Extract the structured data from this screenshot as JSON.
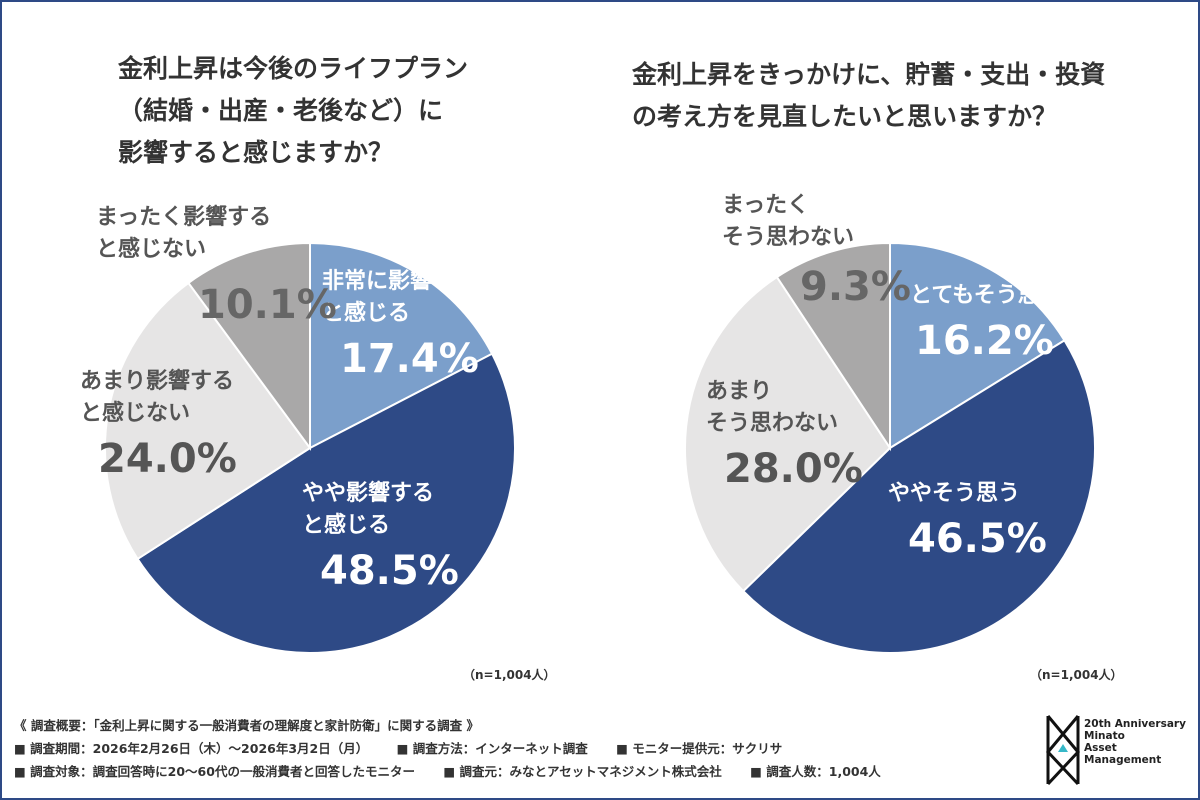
{
  "chart_data": [
    {
      "type": "pie",
      "title": "金利上昇は今後のライフプラン\n（結婚・出産・老後など）に\n影響すると感じますか？",
      "categories": [
        "非常に影響すると感じる",
        "やや影響すると感じる",
        "あまり影響すると感じない",
        "まったく影響すると感じない"
      ],
      "values": [
        17.4,
        48.5,
        24.0,
        10.1
      ],
      "labels": [
        {
          "lines": [
            "非常に影響する",
            "と感じる"
          ],
          "pct": "17.4%"
        },
        {
          "lines": [
            "やや影響する",
            "と感じる"
          ],
          "pct": "48.5%"
        },
        {
          "lines": [
            "あまり影響する",
            "と感じない"
          ],
          "pct": "24.0%"
        },
        {
          "lines": [
            "まったく影響する",
            "と感じない"
          ],
          "pct": "10.1%"
        }
      ],
      "colors": [
        "#7b9fcb",
        "#2e4a86",
        "#e6e5e5",
        "#a9a8a8"
      ],
      "note": "（n=1,004人）"
    },
    {
      "type": "pie",
      "title": "金利上昇をきっかけに、貯蓄・支出・投資\nの考え方を見直したいと思いますか？",
      "categories": [
        "とてもそう思う",
        "ややそう思う",
        "あまりそう思わない",
        "まったくそう思わない"
      ],
      "values": [
        16.2,
        46.5,
        28.0,
        9.3
      ],
      "labels": [
        {
          "lines": [
            "とてもそう思う"
          ],
          "pct": "16.2%"
        },
        {
          "lines": [
            "ややそう思う"
          ],
          "pct": "46.5%"
        },
        {
          "lines": [
            "あまり",
            "そう思わない"
          ],
          "pct": "28.0%"
        },
        {
          "lines": [
            "まったく",
            "そう思わない"
          ],
          "pct": "9.3%"
        }
      ],
      "colors": [
        "#7b9fcb",
        "#2e4a86",
        "#e6e5e5",
        "#a9a8a8"
      ],
      "note": "（n=1,004人）"
    }
  ],
  "footer": {
    "summary": "《 調査概要：「金利上昇に関する一般消費者の理解度と家計防衛」に関する調査 》",
    "period": "■ 調査期間：2026年2月26日（木）～2026年3月2日（月）",
    "method": "■ 調査方法：インターネット調査",
    "provider": "■ モニター提供元：サクリサ",
    "target": "■ 調査対象：調査回答時に20～60代の一般消費者と回答したモニター",
    "source": "■ 調査元：みなとアセットマネジメント株式会社",
    "count": "■ 調査人数：1,004人"
  },
  "logo": {
    "line1": "20th Anniversary",
    "line2": "Minato",
    "line3": "Asset",
    "line4": "Management"
  }
}
